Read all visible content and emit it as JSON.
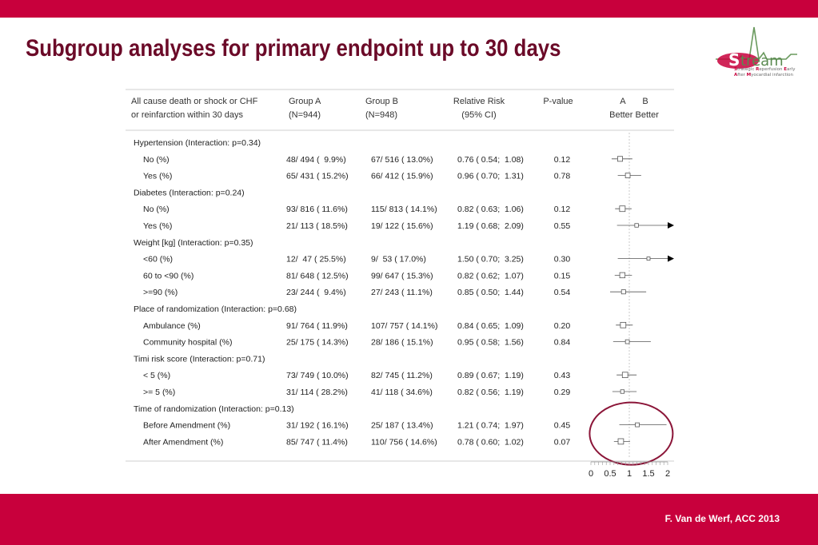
{
  "slide": {
    "title": "Subgroup analyses for primary endpoint up to 30 days",
    "footer": "F. Van de Werf, ACC 2013",
    "accent_color": "#c8003c",
    "title_color": "#6b0a28",
    "highlight_color": "#8b1538"
  },
  "logo": {
    "name": "Stream",
    "subtitle_lines": [
      [
        {
          "b": "S",
          "t": "trategic "
        },
        {
          "b": "R",
          "t": "eperfusion "
        },
        {
          "b": "E",
          "t": "arly"
        }
      ],
      [
        {
          "b": "A",
          "t": "fter "
        },
        {
          "b": "M",
          "t": "yocardial infarction"
        }
      ]
    ]
  },
  "table": {
    "headers": {
      "outcome": [
        "All cause death or shock or CHF",
        "or reinfarction within 30 days"
      ],
      "group_a": [
        "Group A",
        "(N=944)"
      ],
      "group_b": [
        "Group B",
        "(N=948)"
      ],
      "rr": [
        "Relative Risk",
        "(95% CI)"
      ],
      "p": [
        "P-value"
      ],
      "better": [
        "A       B",
        "Better Better"
      ]
    }
  },
  "chart_data": {
    "type": "forest",
    "title": "Subgroup analyses for primary endpoint up to 30 days",
    "xlabel": "",
    "x_ticks": [
      0,
      0.5,
      1,
      1.5,
      2
    ],
    "x_tick_labels": [
      "0",
      "0.5",
      "1",
      "1.5",
      "2"
    ],
    "xlim": [
      0,
      2
    ],
    "reference_line": 1,
    "rows": [
      {
        "kind": "group",
        "label": "Hypertension (Interaction: p=0.34)"
      },
      {
        "kind": "item",
        "label": "No (%)",
        "a": "48/ 494 (  9.9%)",
        "b": "67/ 516 ( 13.0%)",
        "rr_text": "0.76 ( 0.54;  1.08)",
        "p": "0.12",
        "rr": 0.76,
        "lo": 0.54,
        "hi": 1.08,
        "n": 1010
      },
      {
        "kind": "item",
        "label": "Yes (%)",
        "a": "65/ 431 ( 15.2%)",
        "b": "66/ 412 ( 15.9%)",
        "rr_text": "0.96 ( 0.70;  1.31)",
        "p": "0.78",
        "rr": 0.96,
        "lo": 0.7,
        "hi": 1.31,
        "n": 843
      },
      {
        "kind": "group",
        "label": "Diabetes (Interaction: p=0.24)"
      },
      {
        "kind": "item",
        "label": "No (%)",
        "a": "93/ 816 ( 11.6%)",
        "b": "115/ 813 ( 14.1%)",
        "rr_text": "0.82 ( 0.63;  1.06)",
        "p": "0.12",
        "rr": 0.82,
        "lo": 0.63,
        "hi": 1.06,
        "n": 1629
      },
      {
        "kind": "item",
        "label": "Yes (%)",
        "a": "21/ 113 ( 18.5%)",
        "b": "19/ 122 ( 15.6%)",
        "rr_text": "1.19 ( 0.68;  2.09)",
        "p": "0.55",
        "rr": 1.19,
        "lo": 0.68,
        "hi": 2.09,
        "n": 235
      },
      {
        "kind": "group",
        "label": "Weight [kg] (Interaction: p=0.35)"
      },
      {
        "kind": "item",
        "label": "<60 (%)",
        "a": "12/  47 ( 25.5%)",
        "b": "9/  53 ( 17.0%)",
        "rr_text": "1.50 ( 0.70;  3.25)",
        "p": "0.30",
        "rr": 1.5,
        "lo": 0.7,
        "hi": 3.25,
        "n": 100
      },
      {
        "kind": "item",
        "label": "60 to <90 (%)",
        "a": "81/ 648 ( 12.5%)",
        "b": "99/ 647 ( 15.3%)",
        "rr_text": "0.82 ( 0.62;  1.07)",
        "p": "0.15",
        "rr": 0.82,
        "lo": 0.62,
        "hi": 1.07,
        "n": 1295
      },
      {
        "kind": "item",
        "label": ">=90 (%)",
        "a": "23/ 244 (  9.4%)",
        "b": "27/ 243 ( 11.1%)",
        "rr_text": "0.85 ( 0.50;  1.44)",
        "p": "0.54",
        "rr": 0.85,
        "lo": 0.5,
        "hi": 1.44,
        "n": 487
      },
      {
        "kind": "group",
        "label": "Place of randomization (Interaction: p=0.68)"
      },
      {
        "kind": "item",
        "label": "Ambulance (%)",
        "a": "91/ 764 ( 11.9%)",
        "b": "107/ 757 ( 14.1%)",
        "rr_text": "0.84 ( 0.65;  1.09)",
        "p": "0.20",
        "rr": 0.84,
        "lo": 0.65,
        "hi": 1.09,
        "n": 1521
      },
      {
        "kind": "item",
        "label": "Community hospital (%)",
        "a": "25/ 175 ( 14.3%)",
        "b": "28/ 186 ( 15.1%)",
        "rr_text": "0.95 ( 0.58;  1.56)",
        "p": "0.84",
        "rr": 0.95,
        "lo": 0.58,
        "hi": 1.56,
        "n": 361
      },
      {
        "kind": "group",
        "label": "Timi risk score (Interaction: p=0.71)"
      },
      {
        "kind": "item",
        "label": "< 5 (%)",
        "a": "73/ 749 ( 10.0%)",
        "b": "82/ 745 ( 11.2%)",
        "rr_text": "0.89 ( 0.67;  1.19)",
        "p": "0.43",
        "rr": 0.89,
        "lo": 0.67,
        "hi": 1.19,
        "n": 1494
      },
      {
        "kind": "item",
        "label": ">= 5 (%)",
        "a": "31/ 114 ( 28.2%)",
        "b": "41/ 118 ( 34.6%)",
        "rr_text": "0.82 ( 0.56;  1.19)",
        "p": "0.29",
        "rr": 0.82,
        "lo": 0.56,
        "hi": 1.19,
        "n": 232
      },
      {
        "kind": "group",
        "label": "Time of randomization (Interaction: p=0.13)"
      },
      {
        "kind": "item",
        "label": "Before Amendment (%)",
        "a": "31/ 192 ( 16.1%)",
        "b": "25/ 187 ( 13.4%)",
        "rr_text": "1.21 ( 0.74;  1.97)",
        "p": "0.45",
        "rr": 1.21,
        "lo": 0.74,
        "hi": 1.97,
        "n": 379
      },
      {
        "kind": "item",
        "label": "After Amendment (%)",
        "a": "85/ 747 ( 11.4%)",
        "b": "110/ 756 ( 14.6%)",
        "rr_text": "0.78 ( 0.60;  1.02)",
        "p": "0.07",
        "rr": 0.78,
        "lo": 0.6,
        "hi": 1.02,
        "n": 1503
      }
    ],
    "highlighted_group": "Time of randomization (Interaction: p=0.13)"
  }
}
